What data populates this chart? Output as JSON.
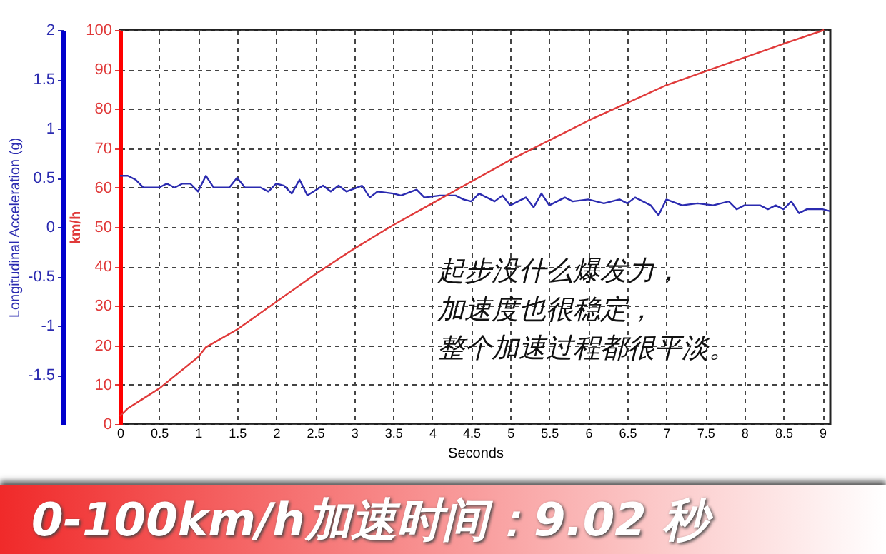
{
  "chart_data": {
    "type": "line",
    "title": "0-100km/h加速时间：9.02 秒",
    "xlabel": "Seconds",
    "ylabel": "Longitudinal Acceleration (g)",
    "y2label": "km/h",
    "annotations": [
      "起步没什么爆发力，",
      "加速度也很稳定，",
      "整个加速过程都很平淡。"
    ],
    "xlim": [
      0,
      9.1
    ],
    "xticks": [
      0,
      0.5,
      1,
      1.5,
      2,
      2.5,
      3,
      3.5,
      4,
      4.5,
      5,
      5.5,
      6,
      6.5,
      7,
      7.5,
      8,
      8.5,
      9
    ],
    "ylim": [
      -2,
      2
    ],
    "yticks": [
      -1.5,
      -1,
      -0.5,
      0,
      0.5,
      1,
      1.5,
      2
    ],
    "y2lim": [
      0,
      100
    ],
    "y2ticks": [
      0,
      10,
      20,
      30,
      40,
      50,
      60,
      70,
      80,
      90,
      100
    ],
    "grid": true,
    "series": [
      {
        "color": "#2b2bb0",
        "axis": "y",
        "x": [
          0,
          0.1,
          0.2,
          0.3,
          0.5,
          0.6,
          0.7,
          0.8,
          0.9,
          1.0,
          1.1,
          1.2,
          1.4,
          1.5,
          1.6,
          1.8,
          1.9,
          2.0,
          2.1,
          2.2,
          2.3,
          2.4,
          2.6,
          2.7,
          2.8,
          2.9,
          3.1,
          3.2,
          3.3,
          3.5,
          3.6,
          3.8,
          3.9,
          4.1,
          4.3,
          4.4,
          4.5,
          4.6,
          4.8,
          4.9,
          5.0,
          5.2,
          5.3,
          5.4,
          5.5,
          5.7,
          5.8,
          6.0,
          6.2,
          6.4,
          6.5,
          6.6,
          6.8,
          6.9,
          7.0,
          7.2,
          7.4,
          7.6,
          7.8,
          7.9,
          8.0,
          8.2,
          8.3,
          8.4,
          8.5,
          8.6,
          8.7,
          8.8,
          9.0,
          9.1
        ],
        "values": [
          0.52,
          0.52,
          0.48,
          0.4,
          0.4,
          0.44,
          0.4,
          0.44,
          0.44,
          0.36,
          0.52,
          0.4,
          0.4,
          0.5,
          0.4,
          0.4,
          0.36,
          0.44,
          0.42,
          0.34,
          0.48,
          0.32,
          0.42,
          0.36,
          0.42,
          0.36,
          0.42,
          0.3,
          0.36,
          0.34,
          0.32,
          0.38,
          0.3,
          0.32,
          0.32,
          0.28,
          0.26,
          0.34,
          0.26,
          0.32,
          0.22,
          0.3,
          0.2,
          0.34,
          0.22,
          0.3,
          0.26,
          0.28,
          0.24,
          0.28,
          0.24,
          0.3,
          0.22,
          0.12,
          0.28,
          0.22,
          0.24,
          0.22,
          0.26,
          0.18,
          0.22,
          0.22,
          0.18,
          0.22,
          0.18,
          0.26,
          0.14,
          0.18,
          0.18,
          0.16
        ]
      },
      {
        "color": "#e03a3a",
        "axis": "y2",
        "x": [
          0,
          0.1,
          0.3,
          0.5,
          1.0,
          1.1,
          1.5,
          2.0,
          2.5,
          3.0,
          3.5,
          4.0,
          4.5,
          5.0,
          5.5,
          6.0,
          6.5,
          7.0,
          7.5,
          8.0,
          8.5,
          9.02
        ],
        "values": [
          2,
          4,
          6.5,
          9,
          17,
          19.5,
          24,
          31,
          38,
          44.5,
          50.5,
          56,
          61.5,
          67,
          72,
          77,
          81.5,
          86,
          89.5,
          93,
          96.5,
          100
        ]
      }
    ]
  }
}
